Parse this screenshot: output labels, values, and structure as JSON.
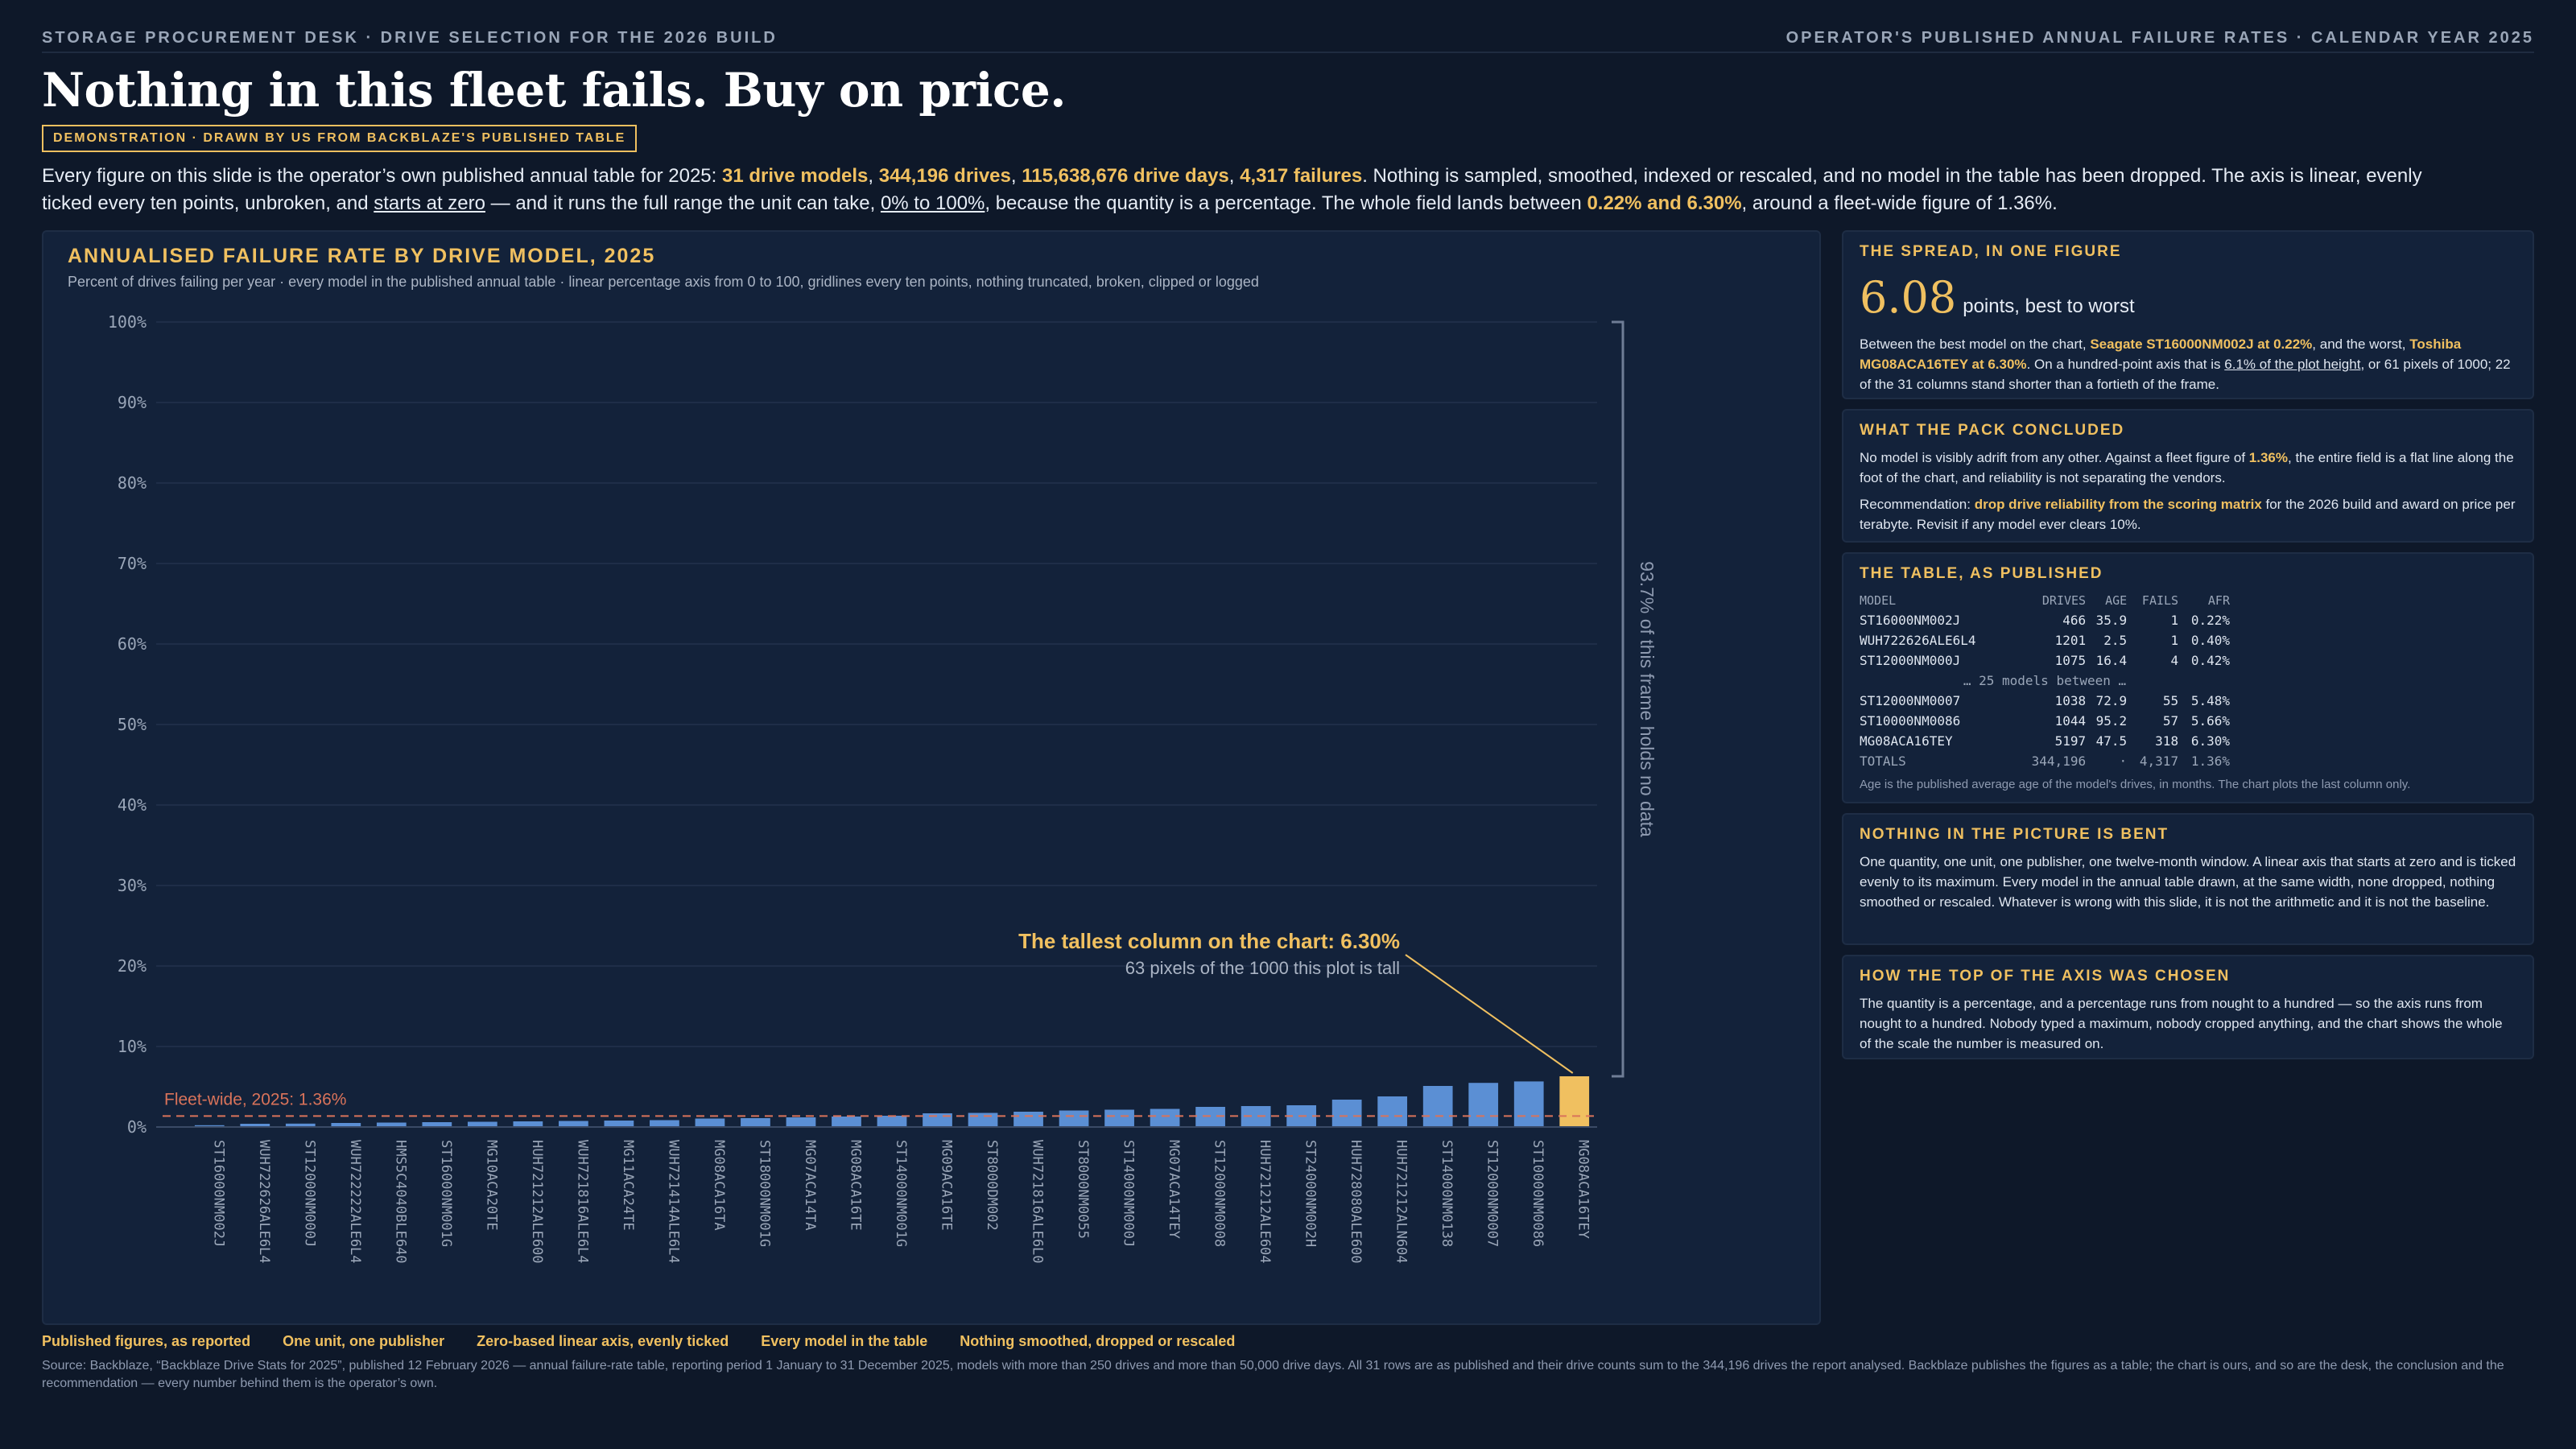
{
  "header": {
    "left": "STORAGE PROCUREMENT DESK · DRIVE SELECTION FOR THE 2026 BUILD",
    "right": "OPERATOR'S PUBLISHED ANNUAL FAILURE RATES · CALENDAR YEAR 2025"
  },
  "title": "Nothing in this fleet fails. Buy on price.",
  "badge": "DEMONSTRATION · DRAWN BY US FROM BACKBLAZE'S PUBLISHED TABLE",
  "intro": {
    "t1": "Every figure on this slide is the operator’s own published annual table for 2025: ",
    "b1": "31 drive models",
    "s1": ", ",
    "b2": "344,196 drives",
    "s2": ", ",
    "b3": "115,638,676 drive days",
    "s3": ", ",
    "b4": "4,317 failures",
    "t2": ". Nothing is sampled, smoothed, indexed or rescaled, and no model in the table has been dropped. The axis is linear, evenly ticked every ten points, unbroken, and ",
    "u1": "starts at zero",
    "t3": " — and it runs the full range the unit can take, ",
    "u2": "0% to 100%",
    "t4": ", because the quantity is a percentage. The whole field lands between ",
    "b5": "0.22% and 6.30%",
    "t5": ", around a fleet-wide figure of 1.36%."
  },
  "chart_data": {
    "type": "bar",
    "title": "ANNUALISED FAILURE RATE BY DRIVE MODEL, 2025",
    "subtitle": "Percent of drives failing per year · every model in the published annual table · linear percentage axis from 0 to 100, gridlines every ten points, nothing truncated, broken, clipped or logged",
    "ylim": [
      0,
      100
    ],
    "yticks": [
      "0%",
      "10%",
      "20%",
      "30%",
      "40%",
      "50%",
      "60%",
      "70%",
      "80%",
      "90%",
      "100%"
    ],
    "categories": [
      "ST16000NM002J",
      "WUH722626ALE6L4",
      "ST12000NM000J",
      "WUH722222ALE6L4",
      "HMS5C4040BLE640",
      "ST16000NM001G",
      "MG10ACA20TE",
      "HUH721212ALE600",
      "WUH721816ALE6L4",
      "MG11ACA24TE",
      "WUH721414ALE6L4",
      "MG08ACA16TA",
      "ST18000NM001G",
      "MG07ACA14TA",
      "MG08ACA16TE",
      "ST14000NM001G",
      "MG09ACA16TE",
      "ST8000DM002",
      "WUH721816ALE6L0",
      "ST8000NM0055",
      "ST14000NM000J",
      "MG07ACA14TEY",
      "ST12000NM0008",
      "HUH721212ALE604",
      "ST24000NM002H",
      "HUH728080ALE600",
      "HUH721212ALN604",
      "ST14000NM0138",
      "ST12000NM0007",
      "ST10000NM0086",
      "MG08ACA16TEY"
    ],
    "values": [
      0.22,
      0.4,
      0.42,
      0.5,
      0.55,
      0.6,
      0.65,
      0.7,
      0.75,
      0.8,
      0.85,
      1.05,
      1.1,
      1.2,
      1.3,
      1.4,
      1.7,
      1.75,
      1.9,
      2.05,
      2.15,
      2.25,
      2.5,
      2.6,
      2.7,
      3.4,
      3.8,
      5.1,
      5.48,
      5.66,
      6.3
    ],
    "highlight_index": 30,
    "reference_line": {
      "value": 1.36,
      "label": "Fleet-wide, 2025: 1.36%"
    },
    "annotation": {
      "title": "The tallest column on the chart: 6.30%",
      "sub": "63 pixels of the 1000 this plot is tall"
    },
    "bracket_label": "93.7% of this frame holds no data",
    "colors": {
      "bar": "#5b8fd4",
      "highlight": "#f0c060",
      "reference": "#d9735a",
      "grid": "#1f2e48",
      "axis_text": "#9aa6b8"
    }
  },
  "sidebar": {
    "spread": {
      "title": "THE SPREAD, IN ONE FIGURE",
      "num": "6.08",
      "unit": "points, best to worst",
      "p_t1": "Between the best model on the chart, ",
      "p_b1": "Seagate ST16000NM002J at 0.22%",
      "p_t2": ", and the worst, ",
      "p_b2": "Toshiba MG08ACA16TEY at 6.30%",
      "p_t3": ". On a hundred-point axis that is ",
      "p_u1": "6.1% of the plot height",
      "p_t4": ", or 61 pixels of 1000; 22 of the 31 columns stand shorter than a fortieth of the frame."
    },
    "pack": {
      "title": "WHAT THE PACK CONCLUDED",
      "p1_t1": "No model is visibly adrift from any other. Against a fleet figure of ",
      "p1_b1": "1.36%",
      "p1_t2": ", the entire field is a flat line along the foot of the chart, and reliability is not separating the vendors.",
      "p2_t1": "Recommendation: ",
      "p2_b1": "drop drive reliability from the scoring matrix",
      "p2_t2": " for the 2026 build and award on price per terabyte. Revisit if any model ever clears 10%."
    },
    "table": {
      "title": "THE TABLE, AS PUBLISHED",
      "headers": [
        "MODEL",
        "DRIVES",
        "AGE",
        "FAILS",
        "AFR"
      ],
      "top": [
        [
          "ST16000NM002J",
          "466",
          "35.9",
          "1",
          "0.22%"
        ],
        [
          "WUH722626ALE6L4",
          "1201",
          "2.5",
          "1",
          "0.40%"
        ],
        [
          "ST12000NM000J",
          "1075",
          "16.4",
          "4",
          "0.42%"
        ]
      ],
      "middle": "… 25 models between …",
      "bottom": [
        [
          "ST12000NM0007",
          "1038",
          "72.9",
          "55",
          "5.48%"
        ],
        [
          "ST10000NM0086",
          "1044",
          "95.2",
          "57",
          "5.66%"
        ],
        [
          "MG08ACA16TEY",
          "5197",
          "47.5",
          "318",
          "6.30%"
        ]
      ],
      "totals": [
        "TOTALS",
        "344,196",
        "·",
        "4,317",
        "1.36%"
      ],
      "note": "Age is the published average age of the model's drives, in months. The chart plots the last column only."
    },
    "bent": {
      "title": "NOTHING IN THE PICTURE IS BENT",
      "p": "One quantity, one unit, one publisher, one twelve-month window. A linear axis that starts at zero and is ticked evenly to its maximum. Every model in the annual table drawn, at the same width, none dropped, nothing smoothed or rescaled. Whatever is wrong with this slide, it is not the arithmetic and it is not the baseline."
    },
    "axis": {
      "title": "HOW THE TOP OF THE AXIS WAS CHOSEN",
      "p": "The quantity is a percentage, and a percentage runs from nought to a hundred — so the axis runs from nought to a hundred. Nobody typed a maximum, nobody cropped anything, and the chart shows the whole of the scale the number is measured on."
    }
  },
  "footer": {
    "tags": [
      "Published figures, as reported",
      "One unit, one publisher",
      "Zero-based linear axis, evenly ticked",
      "Every model in the table",
      "Nothing smoothed, dropped or rescaled"
    ],
    "source": "Source: Backblaze, “Backblaze Drive Stats for 2025”, published 12 February 2026 — annual failure-rate table, reporting period 1 January to 31 December 2025, models with more than 250 drives and more than 50,000 drive days. All 31 rows are as published and their drive counts sum to the 344,196 drives the report analysed. Backblaze publishes the figures as a table; the chart is ours, and so are the desk, the conclusion and the recommendation — every number behind them is the operator’s own."
  }
}
